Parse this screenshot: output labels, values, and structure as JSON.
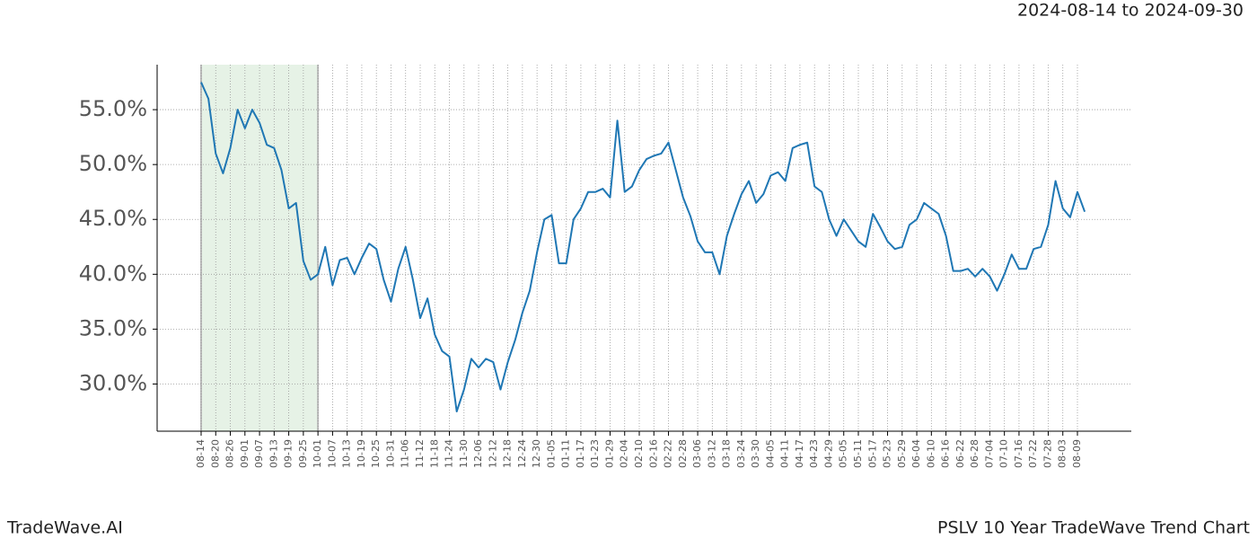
{
  "chart_data": {
    "type": "line",
    "title": "PSLV 10 Year TradeWave Trend Chart",
    "subtitle": "2024-08-14 to 2024-09-30",
    "watermark": "TradeWave.AI",
    "categories": [
      "08-14",
      null,
      "08-20",
      null,
      "08-26",
      null,
      "09-01",
      null,
      "09-07",
      null,
      "09-13",
      null,
      "09-19",
      null,
      "09-25",
      null,
      "10-01",
      null,
      "10-07",
      null,
      "10-13",
      null,
      "10-19",
      null,
      "10-25",
      null,
      "10-31",
      null,
      "11-06",
      null,
      "11-12",
      null,
      "11-18",
      null,
      "11-24",
      null,
      "11-30",
      null,
      "12-06",
      null,
      "12-12",
      null,
      "12-18",
      null,
      "12-24",
      null,
      "12-30",
      null,
      "01-05",
      null,
      "01-11",
      null,
      "01-17",
      null,
      "01-23",
      null,
      "01-29",
      null,
      "02-04",
      null,
      "02-10",
      null,
      "02-16",
      null,
      "02-22",
      null,
      "02-28",
      null,
      "03-06",
      null,
      "03-12",
      null,
      "03-18",
      null,
      "03-24",
      null,
      "03-30",
      null,
      "04-05",
      null,
      "04-11",
      null,
      "04-17",
      null,
      "04-23",
      null,
      "04-29",
      null,
      "05-05",
      null,
      "05-11",
      null,
      "05-17",
      null,
      "05-23",
      null,
      "05-29",
      null,
      "06-04",
      null,
      "06-10",
      null,
      "06-16",
      null,
      "06-22",
      null,
      "06-28",
      null,
      "07-04",
      null,
      "07-10",
      null,
      "07-16",
      null,
      "07-22",
      null,
      "07-28",
      null,
      "08-03",
      null,
      "08-09",
      null
    ],
    "series": [
      {
        "name": "PSLV",
        "color": "#1f77b4",
        "values": [
          57.5,
          56,
          51,
          49.2,
          51.5,
          55,
          53.3,
          55,
          53.8,
          51.8,
          51.5,
          49.5,
          46,
          46.5,
          41.2,
          39.5,
          40,
          42.5,
          39,
          41.3,
          41.5,
          40,
          41.5,
          42.8,
          42.3,
          39.5,
          37.5,
          40.5,
          42.5,
          39.5,
          36,
          37.8,
          34.5,
          33,
          32.5,
          27.5,
          29.5,
          32.3,
          31.5,
          32.3,
          32,
          29.5,
          32,
          34,
          36.5,
          38.5,
          42,
          45,
          45.4,
          41,
          41,
          45,
          46,
          47.5,
          47.5,
          47.8,
          47,
          54,
          47.5,
          48,
          49.5,
          50.5,
          50.8,
          51,
          52,
          49.5,
          47,
          45.3,
          43,
          42,
          42,
          40,
          43.5,
          45.5,
          47.3,
          48.5,
          46.5,
          47.3,
          49,
          49.3,
          48.5,
          51.5,
          51.8,
          52,
          48,
          47.5,
          45,
          43.5,
          45,
          44,
          43,
          42.5,
          45.5,
          44.3,
          43,
          42.3,
          42.5,
          44.5,
          45,
          46.5,
          46,
          45.5,
          43.5,
          40.3,
          40.3,
          40.5,
          39.8,
          40.5,
          39.8,
          38.5,
          40,
          41.8,
          40.5,
          40.5,
          42.3,
          42.5,
          44.5,
          48.5,
          46,
          45.2,
          47.5,
          45.7
        ]
      }
    ],
    "highlight": {
      "from": "08-14",
      "to": "10-01",
      "color": "#e6f2e6"
    },
    "ylim": [
      25.7,
      59.1
    ],
    "yticks": [
      {
        "value": 30,
        "label": "30.0%"
      },
      {
        "value": 35,
        "label": "35.0%"
      },
      {
        "value": 40,
        "label": "40.0%"
      },
      {
        "value": 45,
        "label": "45.0%"
      },
      {
        "value": 50,
        "label": "50.0%"
      },
      {
        "value": 55,
        "label": "55.0%"
      }
    ],
    "grid": true
  }
}
